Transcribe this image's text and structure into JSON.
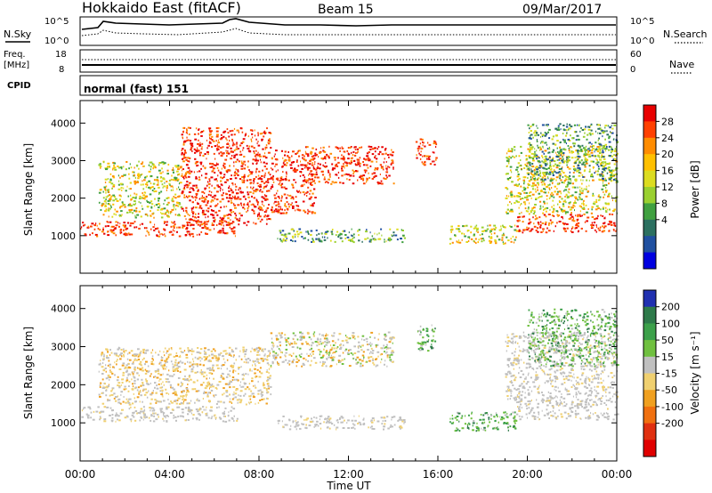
{
  "header": {
    "title": "Hokkaido East (fitACF)",
    "beam": "Beam 15",
    "date": "09/Mar/2017"
  },
  "summary_panels": {
    "nsky_label": "N.Sky",
    "nsearch_label": "N.Search",
    "noise_ticks": [
      "10^5",
      "10^0"
    ],
    "freq_label_line1": "Freq.",
    "freq_label_line2": "[MHz]",
    "freq_ticks": [
      "18",
      "8"
    ],
    "nave_label": "Nave",
    "nave_ticks": [
      "60",
      "0"
    ],
    "cpid_label": "CPID",
    "cpid_text": "normal (fast) 151"
  },
  "chart_data": [
    {
      "type": "heatmap",
      "name": "Power",
      "ylabel": "Slant Range [km]",
      "ylim": [
        0,
        4600
      ],
      "y_ticks": [
        1000,
        2000,
        3000,
        4000
      ],
      "x_ticks": [
        "00:00",
        "04:00",
        "08:00",
        "12:00",
        "16:00",
        "20:00",
        "00:00"
      ],
      "colorbar": {
        "label": "Power [dB]",
        "ticks": [
          "28",
          "24",
          "20",
          "16",
          "12",
          "8",
          "4"
        ],
        "colors": [
          "#e80000",
          "#ff4000",
          "#ff8c00",
          "#ffc000",
          "#dcdc20",
          "#9ad030",
          "#40a040",
          "#2c7060",
          "#2050a0",
          "#0000e0"
        ]
      },
      "echo_regions": [
        {
          "t": [
            0.0,
            7.0
          ],
          "r": [
            1000,
            1400
          ],
          "level": "high"
        },
        {
          "t": [
            0.8,
            4.5
          ],
          "r": [
            1500,
            3000
          ],
          "level": "mid"
        },
        {
          "t": [
            4.5,
            8.5
          ],
          "r": [
            1300,
            3900
          ],
          "level": "high"
        },
        {
          "t": [
            8.5,
            10.5
          ],
          "r": [
            1600,
            3300
          ],
          "level": "high"
        },
        {
          "t": [
            10.0,
            14.0
          ],
          "r": [
            2400,
            3400
          ],
          "level": "high"
        },
        {
          "t": [
            8.8,
            14.5
          ],
          "r": [
            850,
            1200
          ],
          "level": "low"
        },
        {
          "t": [
            15.0,
            15.9
          ],
          "r": [
            2900,
            3600
          ],
          "level": "high"
        },
        {
          "t": [
            16.5,
            19.5
          ],
          "r": [
            800,
            1300
          ],
          "level": "mid"
        },
        {
          "t": [
            19.5,
            24.0
          ],
          "r": [
            1100,
            1600
          ],
          "level": "high"
        },
        {
          "t": [
            19.0,
            24.0
          ],
          "r": [
            1600,
            3400
          ],
          "level": "mid"
        },
        {
          "t": [
            20.0,
            24.0
          ],
          "r": [
            2500,
            4000
          ],
          "level": "low"
        }
      ]
    },
    {
      "type": "heatmap",
      "name": "Velocity",
      "ylabel": "Slant Range [km]",
      "xlabel": "Time UT",
      "ylim": [
        0,
        4600
      ],
      "y_ticks": [
        1000,
        2000,
        3000,
        4000
      ],
      "x_ticks": [
        "00:00",
        "04:00",
        "08:00",
        "12:00",
        "16:00",
        "20:00",
        "00:00"
      ],
      "colorbar": {
        "label": "Velocity [m s⁻¹]",
        "ticks": [
          "200",
          "100",
          "50",
          "15",
          "-15",
          "-50",
          "-100",
          "-200"
        ],
        "colors": [
          "#2030b0",
          "#2e7a4a",
          "#3ca04a",
          "#70c040",
          "#c0c0c0",
          "#f0d070",
          "#f0a020",
          "#f07010",
          "#e03010",
          "#e00000"
        ]
      },
      "echo_regions": [
        {
          "t": [
            0.0,
            7.0
          ],
          "r": [
            1050,
            1450
          ],
          "level": "ground"
        },
        {
          "t": [
            0.8,
            8.5
          ],
          "r": [
            1500,
            3000
          ],
          "level": "negative"
        },
        {
          "t": [
            8.5,
            14.0
          ],
          "r": [
            2500,
            3400
          ],
          "level": "mixed"
        },
        {
          "t": [
            8.8,
            14.5
          ],
          "r": [
            850,
            1200
          ],
          "level": "ground"
        },
        {
          "t": [
            15.0,
            15.9
          ],
          "r": [
            2900,
            3600
          ],
          "level": "positive"
        },
        {
          "t": [
            16.5,
            19.5
          ],
          "r": [
            800,
            1300
          ],
          "level": "positive"
        },
        {
          "t": [
            19.5,
            24.0
          ],
          "r": [
            1100,
            1600
          ],
          "level": "ground"
        },
        {
          "t": [
            19.0,
            24.0
          ],
          "r": [
            1600,
            3400
          ],
          "level": "ground"
        },
        {
          "t": [
            20.0,
            24.0
          ],
          "r": [
            2500,
            4000
          ],
          "level": "positive"
        }
      ]
    }
  ]
}
